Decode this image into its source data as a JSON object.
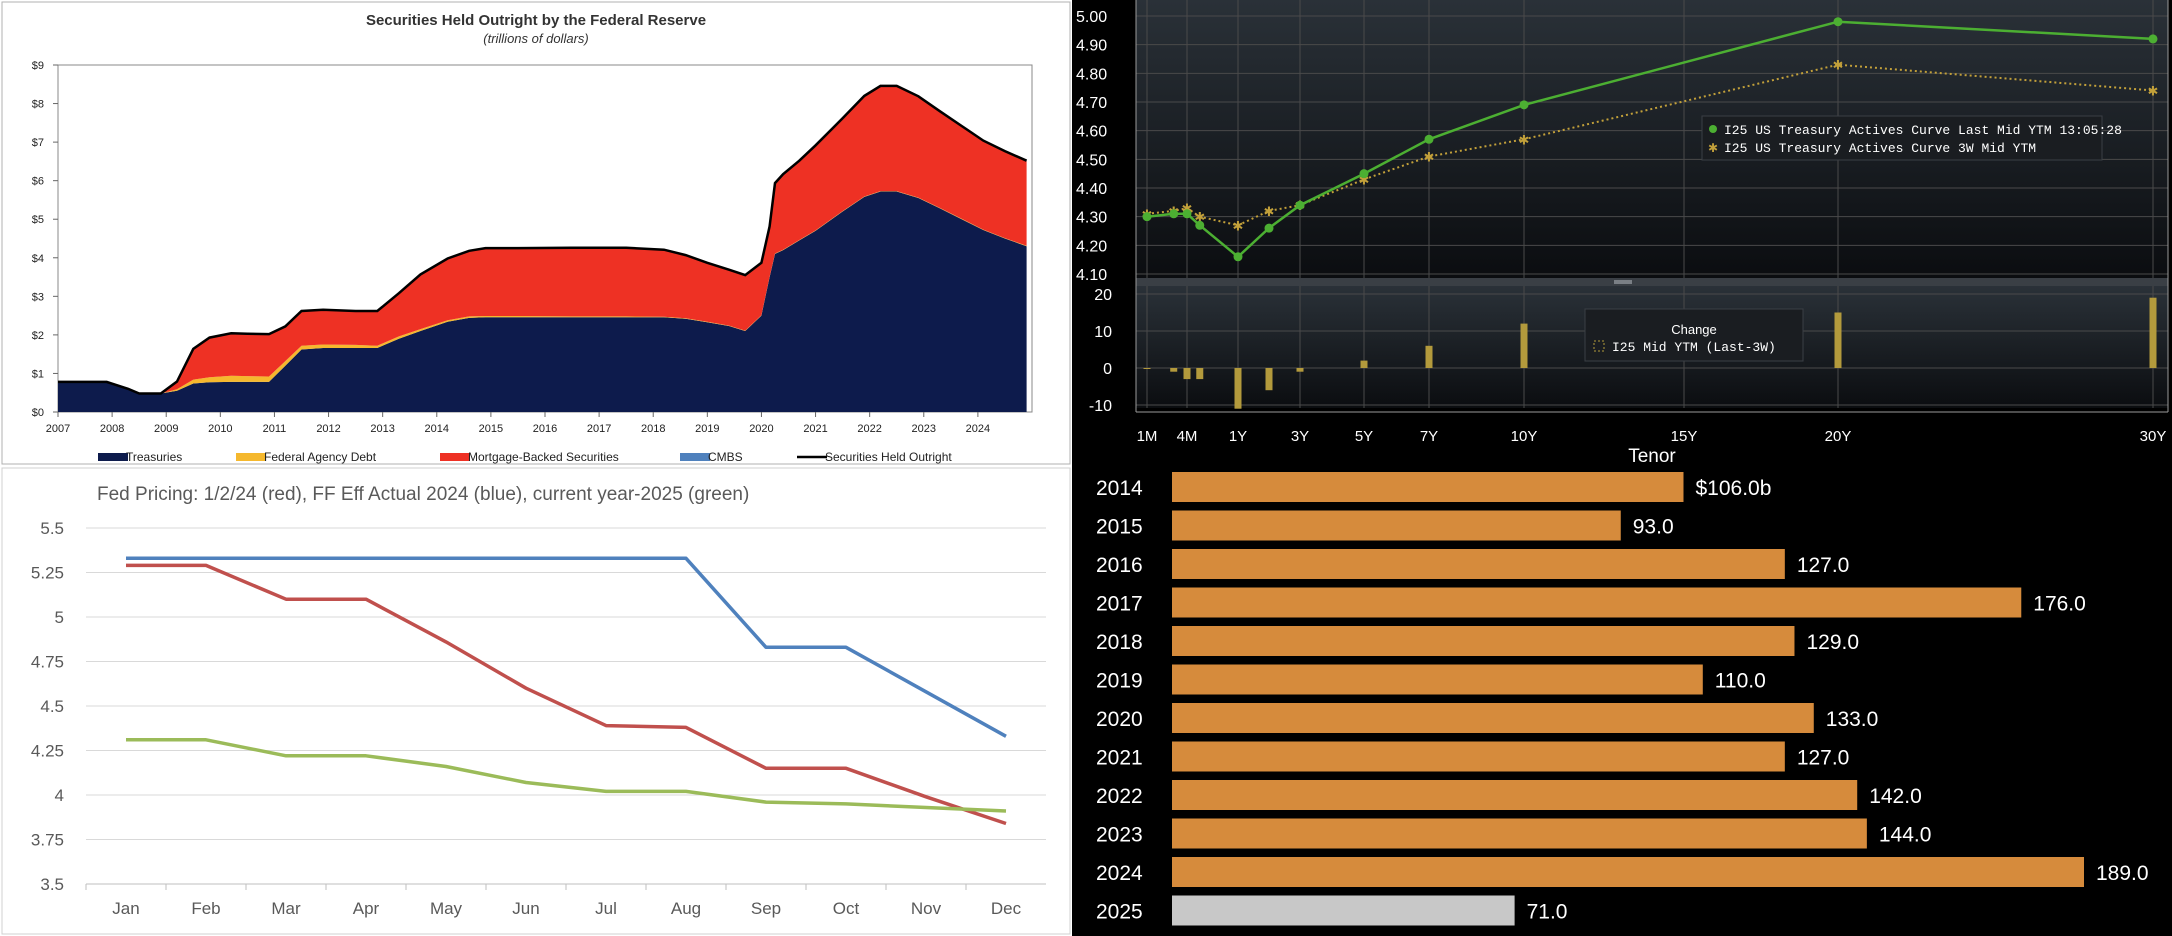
{
  "chart_data": [
    {
      "type": "area",
      "title": "Securities Held Outright by the Federal Reserve",
      "subtitle": "(trillions of dollars)",
      "x_ticks": [
        "2007",
        "2008",
        "2009",
        "2010",
        "2011",
        "2012",
        "2013",
        "2014",
        "2015",
        "2016",
        "2017",
        "2018",
        "2019",
        "2020",
        "2021",
        "2022",
        "2023",
        "2024"
      ],
      "y_ticks": [
        "$0",
        "$1",
        "$2",
        "$3",
        "$4",
        "$5",
        "$6",
        "$7",
        "$8",
        "$9"
      ],
      "ylim": [
        0,
        9
      ],
      "xlim": [
        2007,
        2025
      ],
      "legend": [
        "Treasuries",
        "Federal Agency Debt",
        "Mortgage-Backed Securities",
        "CMBS",
        "Securities Held Outright"
      ],
      "colors": {
        "treasuries": "#0d1b4c",
        "agency": "#f5b82e",
        "mbs": "#ee3124",
        "cmbs": "#4f81bd",
        "total": "#000000"
      },
      "x": [
        2007.0,
        2007.9,
        2008.3,
        2008.5,
        2008.9,
        2009.2,
        2009.5,
        2009.8,
        2010.2,
        2010.5,
        2010.9,
        2011.2,
        2011.5,
        2011.9,
        2012.5,
        2012.9,
        2013.3,
        2013.7,
        2014.2,
        2014.6,
        2014.9,
        2015.5,
        2016.5,
        2017.5,
        2018.2,
        2018.6,
        2019.0,
        2019.4,
        2019.7,
        2020.0,
        2020.15,
        2020.25,
        2020.4,
        2020.7,
        2021.0,
        2021.5,
        2021.9,
        2022.2,
        2022.5,
        2022.9,
        2023.3,
        2023.7,
        2024.1,
        2024.5,
        2024.9
      ],
      "series": [
        {
          "name": "Treasuries",
          "values": [
            0.78,
            0.78,
            0.6,
            0.48,
            0.48,
            0.55,
            0.74,
            0.77,
            0.78,
            0.78,
            0.78,
            1.2,
            1.62,
            1.66,
            1.66,
            1.66,
            1.9,
            2.1,
            2.34,
            2.44,
            2.46,
            2.46,
            2.46,
            2.46,
            2.46,
            2.42,
            2.33,
            2.23,
            2.1,
            2.5,
            3.5,
            4.1,
            4.2,
            4.45,
            4.7,
            5.2,
            5.58,
            5.72,
            5.72,
            5.55,
            5.28,
            5.0,
            4.72,
            4.5,
            4.3
          ]
        },
        {
          "name": "Federal Agency Debt",
          "values": [
            0,
            0,
            0,
            0,
            0,
            0.04,
            0.1,
            0.13,
            0.16,
            0.15,
            0.14,
            0.12,
            0.1,
            0.09,
            0.08,
            0.06,
            0.06,
            0.05,
            0.04,
            0.04,
            0.03,
            0.03,
            0.02,
            0.02,
            0.01,
            0.01,
            0.01,
            0.01,
            0.01,
            0.01,
            0.01,
            0.01,
            0.01,
            0.01,
            0.01,
            0.01,
            0.01,
            0.01,
            0.01,
            0.01,
            0.01,
            0.01,
            0.01,
            0.01,
            0.01
          ]
        },
        {
          "name": "Mortgage-Backed Securities",
          "values": [
            0,
            0,
            0,
            0,
            0,
            0.2,
            0.8,
            1.03,
            1.1,
            1.1,
            1.1,
            0.9,
            0.9,
            0.9,
            0.88,
            0.9,
            1.12,
            1.42,
            1.6,
            1.7,
            1.76,
            1.76,
            1.78,
            1.78,
            1.74,
            1.64,
            1.53,
            1.45,
            1.44,
            1.36,
            1.3,
            1.82,
            1.95,
            2.05,
            2.2,
            2.4,
            2.6,
            2.72,
            2.72,
            2.62,
            2.5,
            2.4,
            2.3,
            2.25,
            2.2
          ]
        },
        {
          "name": "CMBS",
          "values": [
            0,
            0,
            0,
            0,
            0,
            0,
            0,
            0,
            0,
            0,
            0,
            0,
            0,
            0,
            0,
            0,
            0,
            0,
            0,
            0,
            0,
            0,
            0,
            0,
            0,
            0,
            0,
            0,
            0,
            0,
            0.005,
            0.008,
            0.008,
            0.008,
            0.008,
            0.008,
            0.008,
            0.008,
            0.008,
            0.008,
            0.008,
            0.008,
            0.008,
            0.008,
            0.008
          ]
        }
      ]
    },
    {
      "type": "line",
      "title": "US Treasury Actives Curve",
      "y_ticks": [
        "4.10",
        "4.20",
        "4.30",
        "4.40",
        "4.50",
        "4.60",
        "4.70",
        "4.80",
        "4.90",
        "5.00"
      ],
      "ylim": [
        4.08,
        5.02
      ],
      "tenor_ticks": [
        "1M",
        "4M",
        "1Y",
        "3Y",
        "5Y",
        "7Y",
        "10Y",
        "15Y",
        "20Y",
        "30Y"
      ],
      "tenor_tick_years": [
        0.083,
        0.333,
        1,
        3,
        5,
        7,
        10,
        15,
        20,
        30
      ],
      "xlabel": "Tenor",
      "legend": [
        "I25 US Treasury Actives Curve Last Mid YTM 13:05:28",
        "I25 US Treasury Actives Curve 3W Mid YTM"
      ],
      "change_title": "Change",
      "change_legend": "I25 Mid YTM (Last-3W)",
      "change_ticks": [
        "20",
        "10",
        "0",
        "-10"
      ],
      "change_ylim": [
        -12,
        22
      ],
      "tenors": [
        0.083,
        0.25,
        0.333,
        0.5,
        1,
        2,
        3,
        5,
        7,
        10,
        20,
        30
      ],
      "series": [
        {
          "name": "Last",
          "values": [
            4.3,
            4.31,
            4.31,
            4.27,
            4.16,
            4.26,
            4.34,
            4.45,
            4.57,
            4.69,
            4.98,
            4.92
          ]
        },
        {
          "name": "3W",
          "values": [
            4.31,
            4.32,
            4.33,
            4.3,
            4.27,
            4.32,
            4.34,
            4.43,
            4.51,
            4.57,
            4.83,
            4.74
          ]
        }
      ],
      "change_values": [
        0,
        -1,
        -3,
        -3,
        -11,
        -6,
        -1,
        2,
        6,
        12,
        15,
        19
      ],
      "colors": {
        "last": "#4caf32",
        "three_week": "#c2a03a",
        "bars": "#b39a3c",
        "background": "#000000",
        "grid": "#4a4a4a",
        "text": "#ffffff"
      }
    },
    {
      "type": "line",
      "title": "Fed Pricing: 1/2/24 (red), FF Eff Actual 2024 (blue), current year-2025 (green)",
      "categories": [
        "Jan",
        "Feb",
        "Mar",
        "Apr",
        "May",
        "Jun",
        "Jul",
        "Aug",
        "Sep",
        "Oct",
        "Nov",
        "Dec"
      ],
      "y_ticks": [
        "5.5",
        "5.25",
        "5",
        "4.75",
        "4.5",
        "4.25",
        "4",
        "3.75",
        "3.5"
      ],
      "ylim": [
        3.5,
        5.5
      ],
      "series": [
        {
          "name": "red",
          "color": "#c0504d",
          "values": [
            5.29,
            5.29,
            5.1,
            5.1,
            4.86,
            4.6,
            4.39,
            4.38,
            4.15,
            4.15,
            3.99,
            3.84
          ]
        },
        {
          "name": "blue",
          "color": "#4f81bd",
          "values": [
            5.33,
            5.33,
            5.33,
            5.33,
            5.33,
            5.33,
            5.33,
            5.33,
            4.83,
            4.83,
            4.58,
            4.33
          ]
        },
        {
          "name": "green",
          "color": "#9bbb59",
          "values": [
            4.31,
            4.31,
            4.22,
            4.22,
            4.16,
            4.07,
            4.02,
            4.02,
            3.96,
            3.95,
            3.93,
            3.91
          ]
        }
      ]
    },
    {
      "type": "bar",
      "orientation": "horizontal",
      "categories": [
        "2014",
        "2015",
        "2016",
        "2017",
        "2018",
        "2019",
        "2020",
        "2021",
        "2022",
        "2023",
        "2024",
        "2025"
      ],
      "values": [
        106.0,
        93.0,
        127.0,
        176.0,
        129.0,
        110.0,
        133.0,
        127.0,
        142.0,
        144.0,
        189.0,
        71.0
      ],
      "labels": [
        "$106.0b",
        "93.0",
        "127.0",
        "176.0",
        "129.0",
        "110.0",
        "133.0",
        "127.0",
        "142.0",
        "144.0",
        "189.0",
        "71.0"
      ],
      "colors": {
        "bar": "#d68b3c",
        "last": "#c8c8c8",
        "background": "#000000",
        "text": "#ffffff"
      }
    }
  ]
}
